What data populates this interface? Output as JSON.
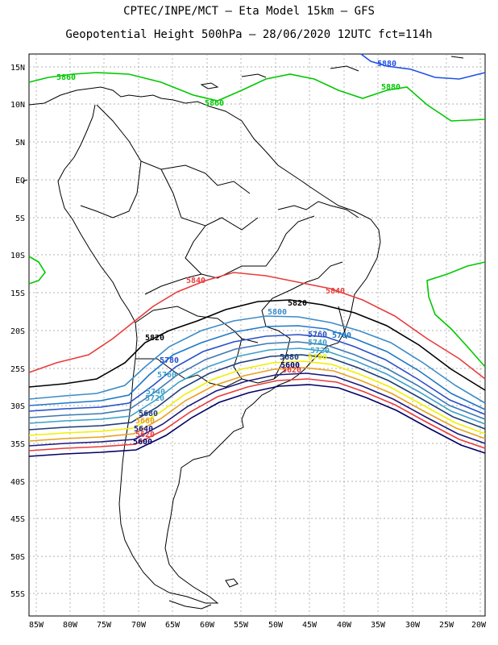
{
  "header": {
    "line1": "CPTEC/INPE/MCT –  Eta Model 15km – GFS",
    "line2": "Geopotential Height 500hPa – 28/06/2020 12UTC fct=114h"
  },
  "axes": {
    "lat_labels": [
      "15N",
      "10N",
      "5N",
      "EQ",
      "5S",
      "10S",
      "15S",
      "20S",
      "25S",
      "30S",
      "35S",
      "40S",
      "45S",
      "50S",
      "55S"
    ],
    "lon_labels": [
      "85W",
      "80W",
      "75W",
      "70W",
      "65W",
      "60W",
      "55W",
      "50W",
      "45W",
      "40W",
      "35W",
      "30W",
      "25W",
      "20W"
    ]
  },
  "contours": {
    "colors": {
      "c5600": "#000066",
      "c5620": "#e83c3c",
      "c5640": "#1a1a80",
      "c5660": "#e8a020",
      "c5680": "#f0f000",
      "c5700": "#1e3c78",
      "c5720": "#3ca0c8",
      "c5740": "#3c78b4",
      "c5760": "#2850c8",
      "c5780": "#1e78c8",
      "c5800": "#3c8cc8",
      "c5820": "#000000",
      "c5840": "#e83c3c",
      "c5860": "#00c800",
      "c5880": "#1e50e6"
    },
    "labels": [
      {
        "id": "l5860a",
        "text": "5860"
      },
      {
        "id": "l5860b",
        "text": "5860"
      },
      {
        "id": "l5880a",
        "text": "5880"
      },
      {
        "id": "l5880b",
        "text": "5880"
      },
      {
        "id": "l5840a",
        "text": "5840"
      },
      {
        "id": "l5840b",
        "text": "5840"
      },
      {
        "id": "l5820a",
        "text": "5820"
      },
      {
        "id": "l5820b",
        "text": "5820"
      },
      {
        "id": "l5800",
        "text": "5800"
      },
      {
        "id": "l5780a",
        "text": "5780"
      },
      {
        "id": "l5780b",
        "text": "5780"
      },
      {
        "id": "l5760a",
        "text": "5760"
      },
      {
        "id": "l5760b",
        "text": "5760"
      },
      {
        "id": "l5740a",
        "text": "5740"
      },
      {
        "id": "l5740b",
        "text": "5740"
      },
      {
        "id": "l5720a",
        "text": "5720"
      },
      {
        "id": "l5720b",
        "text": "5720"
      },
      {
        "id": "l5700",
        "text": "5700"
      },
      {
        "id": "l5680a",
        "text": "5680"
      },
      {
        "id": "l5680b",
        "text": "5680"
      },
      {
        "id": "l5660a",
        "text": "5660"
      },
      {
        "id": "l5640",
        "text": "5640"
      },
      {
        "id": "l5620a",
        "text": "5620"
      },
      {
        "id": "l5620b",
        "text": "5620"
      },
      {
        "id": "l5600a",
        "text": "5600"
      },
      {
        "id": "l5600b",
        "text": "5600"
      }
    ]
  }
}
